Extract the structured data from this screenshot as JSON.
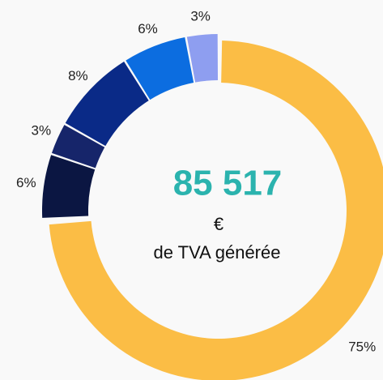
{
  "chart_data": {
    "type": "pie",
    "values": [
      75,
      6,
      3,
      8,
      6,
      3
    ],
    "value_labels": [
      "75%",
      "6%",
      "3%",
      "8%",
      "6%",
      "3%"
    ],
    "colors": [
      "#fbbd45",
      "#0b1642",
      "#16256a",
      "#0a2a87",
      "#0c6de0",
      "#8e9ef0"
    ],
    "center_value": "85 517",
    "center_unit": "€",
    "center_label": "de TVA générée"
  }
}
